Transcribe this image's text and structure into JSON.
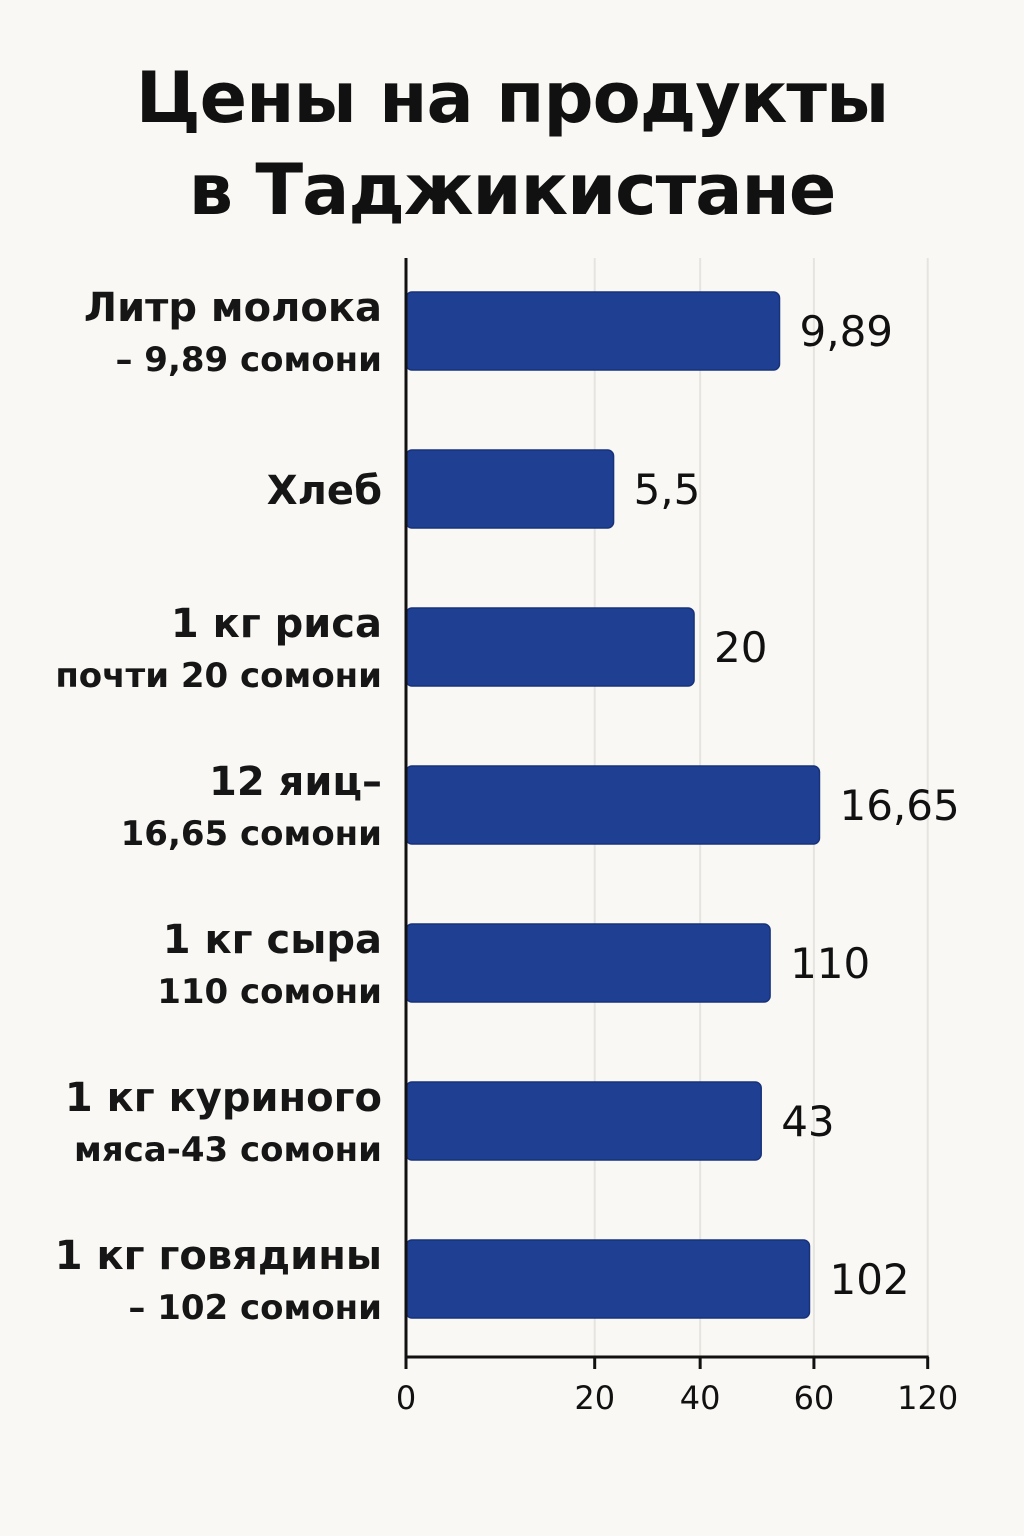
{
  "title": {
    "line1": "Цены на продукты",
    "line2": "в Таджикистане"
  },
  "chart_data": {
    "type": "bar",
    "orientation": "horizontal",
    "categories": [
      [
        "Литр молока",
        "– 9,89 сомони"
      ],
      [
        "Хлеб"
      ],
      [
        "1 кг риса",
        "почти 20 сомони"
      ],
      [
        "12 яиц–",
        "16,65 сомони"
      ],
      [
        "1 кг сыра",
        "110 сомони"
      ],
      [
        "1 кг куриного",
        "мяса-43 сомони"
      ],
      [
        "1 кг говядины",
        "– 102 сомони"
      ]
    ],
    "values": [
      9.89,
      5.5,
      20,
      16.65,
      110,
      43,
      102
    ],
    "value_labels": [
      "9,89",
      "5,5",
      "20",
      "16,65",
      "110",
      "43",
      "102"
    ],
    "bar_lengths_on_axis": [
      67.3,
      37.4,
      51.9,
      74.5,
      65.6,
      64.0,
      72.7
    ],
    "x_ticks": [
      "0",
      "20",
      "40",
      "60",
      "120"
    ],
    "x_tick_values": [
      0,
      34,
      53,
      73.5,
      94
    ],
    "xlim": [
      0,
      94
    ],
    "grid": true,
    "legend": "none",
    "colors": {
      "bar": "#1f3f93",
      "bar_edge": "#17327a",
      "grid": "#e6e4df",
      "axis": "#111111"
    }
  }
}
